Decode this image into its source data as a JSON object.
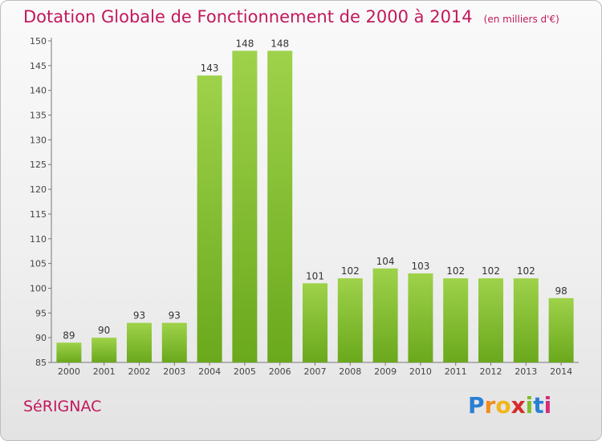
{
  "chart_data": {
    "type": "bar",
    "title": "Dotation Globale de Fonctionnement de 2000 à 2014",
    "unit_note": "(en milliers d'€)",
    "categories": [
      "2000",
      "2001",
      "2002",
      "2003",
      "2004",
      "2005",
      "2006",
      "2007",
      "2008",
      "2009",
      "2010",
      "2011",
      "2012",
      "2013",
      "2014"
    ],
    "values": [
      89,
      90,
      93,
      93,
      143,
      148,
      148,
      101,
      102,
      104,
      103,
      102,
      102,
      102,
      98
    ],
    "ylim": [
      85,
      150
    ],
    "yticks": [
      85,
      90,
      95,
      100,
      105,
      110,
      115,
      120,
      125,
      130,
      135,
      140,
      145,
      150
    ],
    "bar_color": "#7cbf2a",
    "grid": false
  },
  "commune": "SéRIGNAC",
  "logo": {
    "letters": [
      "P",
      "r",
      "o",
      "x",
      "i",
      "t",
      "i"
    ],
    "colors": [
      "#2a7fd4",
      "#f28c1b",
      "#f2b51b",
      "#d62a2a",
      "#7cbf2a",
      "#2a7fd4",
      "#d62a7c"
    ]
  },
  "colors": {
    "title": "#c2185b",
    "axis": "#666666"
  }
}
